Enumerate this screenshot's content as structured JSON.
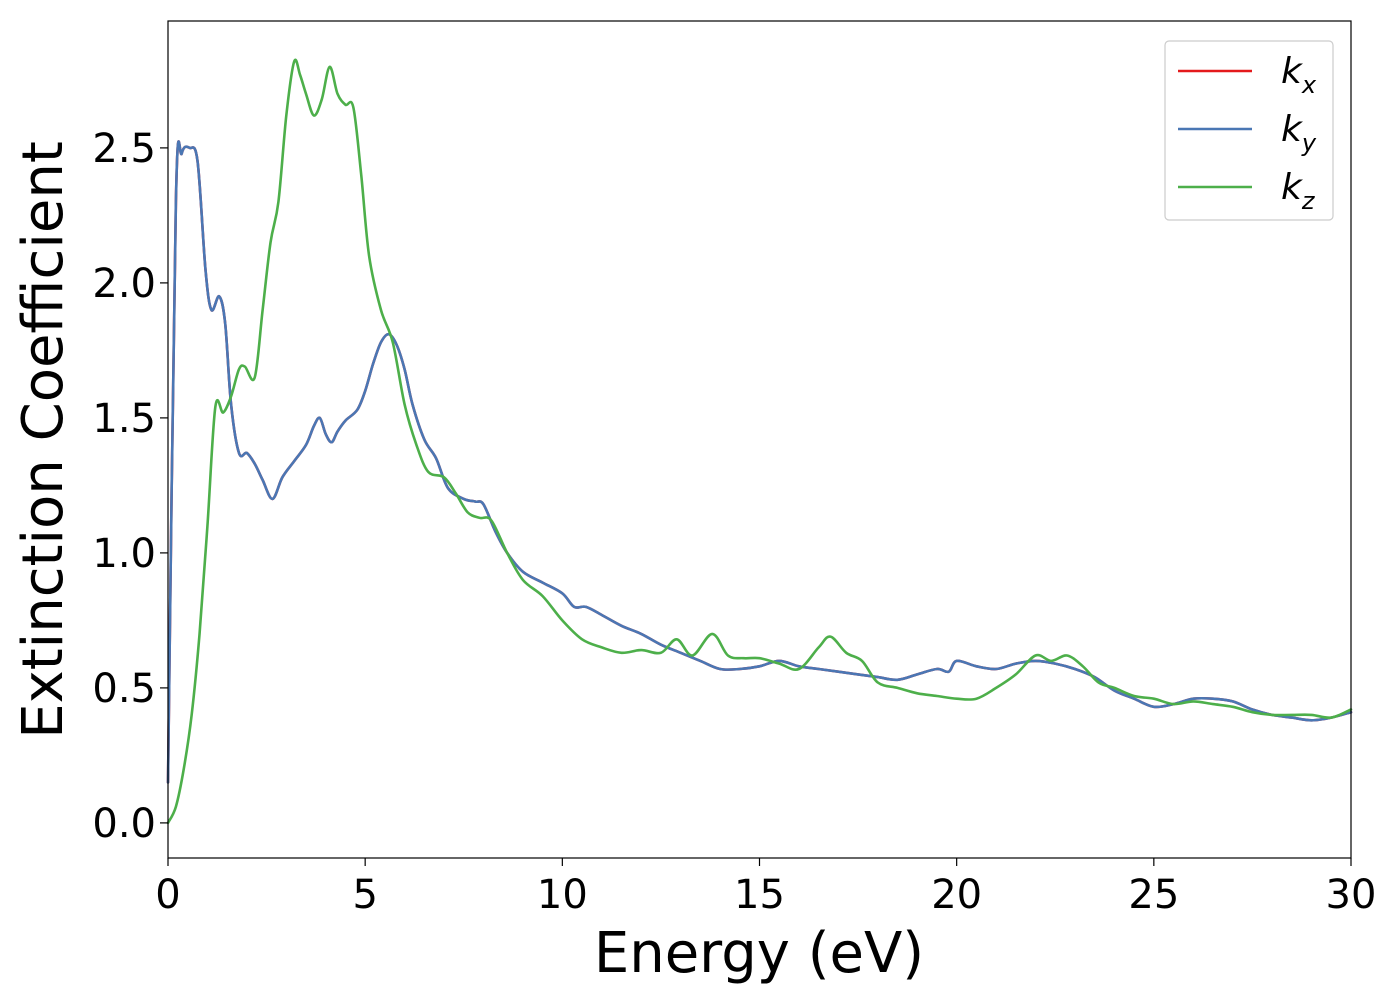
{
  "chart_data": {
    "type": "line",
    "title": "",
    "xlabel": "Energy (eV)",
    "ylabel": "Extinction Coefficient",
    "xlim": [
      0,
      30
    ],
    "ylim": [
      -0.13,
      2.97
    ],
    "xticks": [
      0,
      5,
      10,
      15,
      20,
      25,
      30
    ],
    "xtick_labels": [
      "0",
      "5",
      "10",
      "15",
      "20",
      "25",
      "30"
    ],
    "yticks": [
      0.0,
      0.5,
      1.0,
      1.5,
      2.0,
      2.5
    ],
    "ytick_labels": [
      "0.0",
      "0.5",
      "1.0",
      "1.5",
      "2.0",
      "2.5"
    ],
    "grid": false,
    "legend_position": "top-right",
    "series": [
      {
        "name": "k",
        "subscript": "x",
        "color": "#e41a1c",
        "x": [
          0,
          0.2,
          0.35,
          0.55,
          0.75,
          0.95,
          1.1,
          1.3,
          1.45,
          1.6,
          1.8,
          2.0,
          2.2,
          2.4,
          2.65,
          2.9,
          3.2,
          3.5,
          3.7,
          3.85,
          4.0,
          4.15,
          4.3,
          4.5,
          4.8,
          5.0,
          5.2,
          5.4,
          5.6,
          5.8,
          6.0,
          6.2,
          6.5,
          6.8,
          7.1,
          7.5,
          7.8,
          8.0,
          8.3,
          8.6,
          9.0,
          9.5,
          10.0,
          10.3,
          10.6,
          11.0,
          11.5,
          12.0,
          12.5,
          13.0,
          13.5,
          14.0,
          14.5,
          15.0,
          15.5,
          16.0,
          16.5,
          17.0,
          17.5,
          18.0,
          18.5,
          19.0,
          19.5,
          19.8,
          20.0,
          20.5,
          21.0,
          21.5,
          22.0,
          22.5,
          23.0,
          23.5,
          24.0,
          24.5,
          25.0,
          25.5,
          26.0,
          26.5,
          27.0,
          27.5,
          28.0,
          28.5,
          29.0,
          29.5,
          30.0
        ],
        "y": [
          0.15,
          2.3,
          2.48,
          2.5,
          2.45,
          2.05,
          1.9,
          1.95,
          1.85,
          1.55,
          1.37,
          1.37,
          1.33,
          1.27,
          1.2,
          1.28,
          1.34,
          1.4,
          1.47,
          1.5,
          1.44,
          1.41,
          1.45,
          1.49,
          1.53,
          1.6,
          1.7,
          1.78,
          1.81,
          1.77,
          1.68,
          1.55,
          1.42,
          1.35,
          1.24,
          1.2,
          1.19,
          1.18,
          1.08,
          1.0,
          0.93,
          0.89,
          0.85,
          0.8,
          0.8,
          0.77,
          0.73,
          0.7,
          0.66,
          0.63,
          0.6,
          0.57,
          0.57,
          0.58,
          0.6,
          0.58,
          0.57,
          0.56,
          0.55,
          0.54,
          0.53,
          0.55,
          0.57,
          0.56,
          0.6,
          0.58,
          0.57,
          0.59,
          0.6,
          0.59,
          0.57,
          0.54,
          0.49,
          0.46,
          0.43,
          0.44,
          0.46,
          0.46,
          0.45,
          0.42,
          0.4,
          0.39,
          0.38,
          0.39,
          0.41
        ]
      },
      {
        "name": "k",
        "subscript": "y",
        "color": "#4a77b4",
        "x": [
          0,
          0.2,
          0.35,
          0.55,
          0.75,
          0.95,
          1.1,
          1.3,
          1.45,
          1.6,
          1.8,
          2.0,
          2.2,
          2.4,
          2.65,
          2.9,
          3.2,
          3.5,
          3.7,
          3.85,
          4.0,
          4.15,
          4.3,
          4.5,
          4.8,
          5.0,
          5.2,
          5.4,
          5.6,
          5.8,
          6.0,
          6.2,
          6.5,
          6.8,
          7.1,
          7.5,
          7.8,
          8.0,
          8.3,
          8.6,
          9.0,
          9.5,
          10.0,
          10.3,
          10.6,
          11.0,
          11.5,
          12.0,
          12.5,
          13.0,
          13.5,
          14.0,
          14.5,
          15.0,
          15.5,
          16.0,
          16.5,
          17.0,
          17.5,
          18.0,
          18.5,
          19.0,
          19.5,
          19.8,
          20.0,
          20.5,
          21.0,
          21.5,
          22.0,
          22.5,
          23.0,
          23.5,
          24.0,
          24.5,
          25.0,
          25.5,
          26.0,
          26.5,
          27.0,
          27.5,
          28.0,
          28.5,
          29.0,
          29.5,
          30.0
        ],
        "y": [
          0.15,
          2.3,
          2.48,
          2.5,
          2.45,
          2.05,
          1.9,
          1.95,
          1.85,
          1.55,
          1.37,
          1.37,
          1.33,
          1.27,
          1.2,
          1.28,
          1.34,
          1.4,
          1.47,
          1.5,
          1.44,
          1.41,
          1.45,
          1.49,
          1.53,
          1.6,
          1.7,
          1.78,
          1.81,
          1.77,
          1.68,
          1.55,
          1.42,
          1.35,
          1.24,
          1.2,
          1.19,
          1.18,
          1.08,
          1.0,
          0.93,
          0.89,
          0.85,
          0.8,
          0.8,
          0.77,
          0.73,
          0.7,
          0.66,
          0.63,
          0.6,
          0.57,
          0.57,
          0.58,
          0.6,
          0.58,
          0.57,
          0.56,
          0.55,
          0.54,
          0.53,
          0.55,
          0.57,
          0.56,
          0.6,
          0.58,
          0.57,
          0.59,
          0.6,
          0.59,
          0.57,
          0.54,
          0.49,
          0.46,
          0.43,
          0.44,
          0.46,
          0.46,
          0.45,
          0.42,
          0.4,
          0.39,
          0.38,
          0.39,
          0.41
        ]
      },
      {
        "name": "k",
        "subscript": "z",
        "color": "#4daf4a",
        "x": [
          0,
          0.2,
          0.4,
          0.6,
          0.8,
          1.0,
          1.2,
          1.4,
          1.6,
          1.8,
          1.95,
          2.2,
          2.4,
          2.6,
          2.8,
          3.0,
          3.2,
          3.35,
          3.5,
          3.7,
          3.9,
          4.1,
          4.3,
          4.5,
          4.7,
          4.9,
          5.1,
          5.4,
          5.7,
          6.0,
          6.3,
          6.6,
          7.0,
          7.3,
          7.6,
          7.9,
          8.2,
          8.6,
          9.0,
          9.5,
          10.0,
          10.5,
          11.0,
          11.5,
          12.0,
          12.5,
          12.9,
          13.3,
          13.8,
          14.2,
          14.6,
          15.0,
          15.5,
          16.0,
          16.5,
          16.8,
          17.2,
          17.6,
          18.0,
          18.5,
          19.0,
          19.5,
          20.0,
          20.5,
          21.0,
          21.5,
          22.0,
          22.4,
          22.8,
          23.2,
          23.6,
          24.0,
          24.5,
          25.0,
          25.5,
          26.0,
          26.5,
          27.0,
          27.5,
          28.0,
          28.5,
          29.0,
          29.5,
          30.0
        ],
        "y": [
          0.0,
          0.06,
          0.2,
          0.4,
          0.7,
          1.1,
          1.54,
          1.52,
          1.58,
          1.68,
          1.69,
          1.65,
          1.9,
          2.15,
          2.3,
          2.62,
          2.82,
          2.77,
          2.7,
          2.62,
          2.68,
          2.8,
          2.7,
          2.66,
          2.65,
          2.4,
          2.1,
          1.9,
          1.78,
          1.55,
          1.4,
          1.3,
          1.28,
          1.22,
          1.15,
          1.13,
          1.12,
          1.0,
          0.9,
          0.84,
          0.75,
          0.68,
          0.65,
          0.63,
          0.64,
          0.63,
          0.68,
          0.62,
          0.7,
          0.62,
          0.61,
          0.61,
          0.59,
          0.57,
          0.65,
          0.69,
          0.63,
          0.6,
          0.52,
          0.5,
          0.48,
          0.47,
          0.46,
          0.46,
          0.5,
          0.55,
          0.62,
          0.6,
          0.62,
          0.58,
          0.52,
          0.5,
          0.47,
          0.46,
          0.44,
          0.45,
          0.44,
          0.43,
          0.41,
          0.4,
          0.4,
          0.4,
          0.39,
          0.42
        ]
      }
    ]
  }
}
